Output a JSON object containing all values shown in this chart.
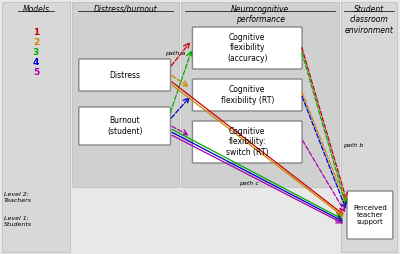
{
  "bg_color": "#e8e8e8",
  "white": "#ffffff",
  "models_label": "Models",
  "model_numbers": [
    "1",
    "2",
    "3",
    "4",
    "5"
  ],
  "model_colors": [
    "#cc0000",
    "#cc8800",
    "#00aa00",
    "#0000cc",
    "#aa00aa"
  ],
  "distress_burnout_label": "Distress/burnout",
  "neurocog_label": "Neurocognitive\nperformance",
  "student_label": "Student\nclassroom\nenvironment",
  "box_distress": "Distress",
  "box_burnout": "Burnout\n(student)",
  "box_cog1": "Cognitive\nflexibility\n(accuracy)",
  "box_cog2": "Cognitive\nflexibility (RT)",
  "box_cog3": "Cognitive\nflexibility:\nswitch (RT)",
  "box_perceived": "Perceived\nteacher\nsupport",
  "path_a": "path a",
  "path_b": "path b",
  "path_c": "path c",
  "level2": "Level 2:\nTeachers",
  "level1": "Level 1:\nStudents"
}
